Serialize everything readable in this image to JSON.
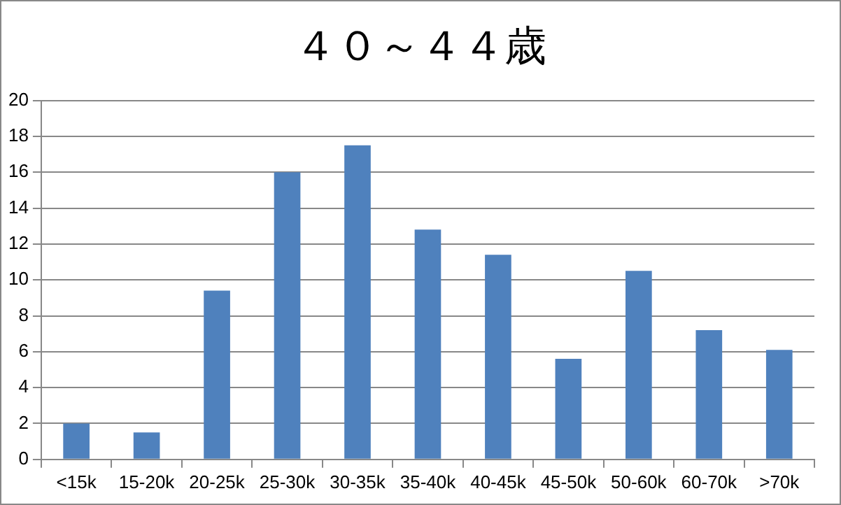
{
  "chart_data": {
    "type": "bar",
    "title": "４０～４４歳",
    "categories": [
      "<15k",
      "15-20k",
      "20-25k",
      "25-30k",
      "30-35k",
      "35-40k",
      "40-45k",
      "45-50k",
      "50-60k",
      "60-70k",
      ">70k"
    ],
    "values": [
      2.0,
      1.5,
      9.4,
      16.0,
      17.5,
      12.8,
      11.4,
      5.6,
      10.5,
      7.2,
      6.1
    ],
    "color": "#4f81bd",
    "ylim": [
      0,
      20
    ],
    "yticks": [
      0,
      2,
      4,
      6,
      8,
      10,
      12,
      14,
      16,
      18,
      20
    ],
    "grid": "y",
    "legend": false
  }
}
